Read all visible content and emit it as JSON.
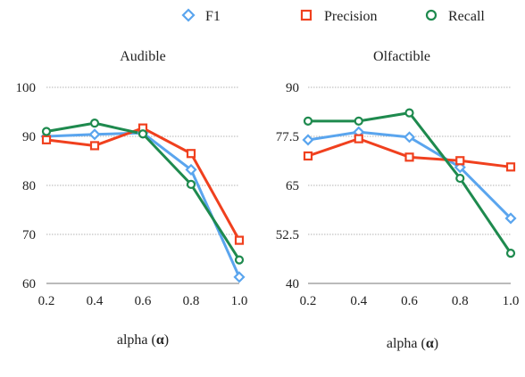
{
  "colors": {
    "F1": "#5aa5ee",
    "Precision": "#f0401e",
    "Recall": "#1e8a4e"
  },
  "legend": [
    {
      "name": "F1",
      "marker": "diamond-icon"
    },
    {
      "name": "Precision",
      "marker": "square-icon"
    },
    {
      "name": "Recall",
      "marker": "circle-icon"
    }
  ],
  "chart_data": [
    {
      "type": "line",
      "title": "Audible",
      "xlabel": "alpha",
      "xlabel_symbol": "α",
      "ylabel": "",
      "x": [
        0.2,
        0.4,
        0.6,
        0.8,
        1.0
      ],
      "x_tick_labels": [
        "0.2",
        "0.4",
        "0.6",
        "0.8",
        "1.0"
      ],
      "ylim": [
        60,
        100
      ],
      "y_ticks": [
        60,
        70,
        80,
        90,
        100
      ],
      "y_tick_labels": [
        "60",
        "70",
        "80",
        "90",
        "100"
      ],
      "grid": "horizontal dotted",
      "series": [
        {
          "name": "F1",
          "values": [
            90.0,
            90.4,
            90.7,
            83.2,
            61.3
          ]
        },
        {
          "name": "Precision",
          "values": [
            89.3,
            88.1,
            91.7,
            86.5,
            68.8
          ]
        },
        {
          "name": "Recall",
          "values": [
            91.0,
            92.7,
            90.5,
            80.2,
            64.8
          ]
        }
      ]
    },
    {
      "type": "line",
      "title": "Olfactible",
      "xlabel": "alpha",
      "xlabel_symbol": "α",
      "ylabel": "",
      "x": [
        0.2,
        0.4,
        0.6,
        0.8,
        1.0
      ],
      "x_tick_labels": [
        "0.2",
        "0.4",
        "0.6",
        "0.8",
        "1.0"
      ],
      "ylim": [
        40,
        90
      ],
      "y_ticks": [
        40,
        52.5,
        65,
        77.5,
        90
      ],
      "y_tick_labels": [
        "40",
        "52.5",
        "65",
        "77.5",
        "90"
      ],
      "grid": "horizontal dotted",
      "series": [
        {
          "name": "F1",
          "values": [
            76.6,
            78.6,
            77.3,
            69.6,
            56.6
          ]
        },
        {
          "name": "Precision",
          "values": [
            72.5,
            76.9,
            72.2,
            71.3,
            69.7
          ]
        },
        {
          "name": "Recall",
          "values": [
            81.4,
            81.4,
            83.5,
            66.8,
            47.7
          ]
        }
      ]
    }
  ],
  "legend_position": "top-center"
}
